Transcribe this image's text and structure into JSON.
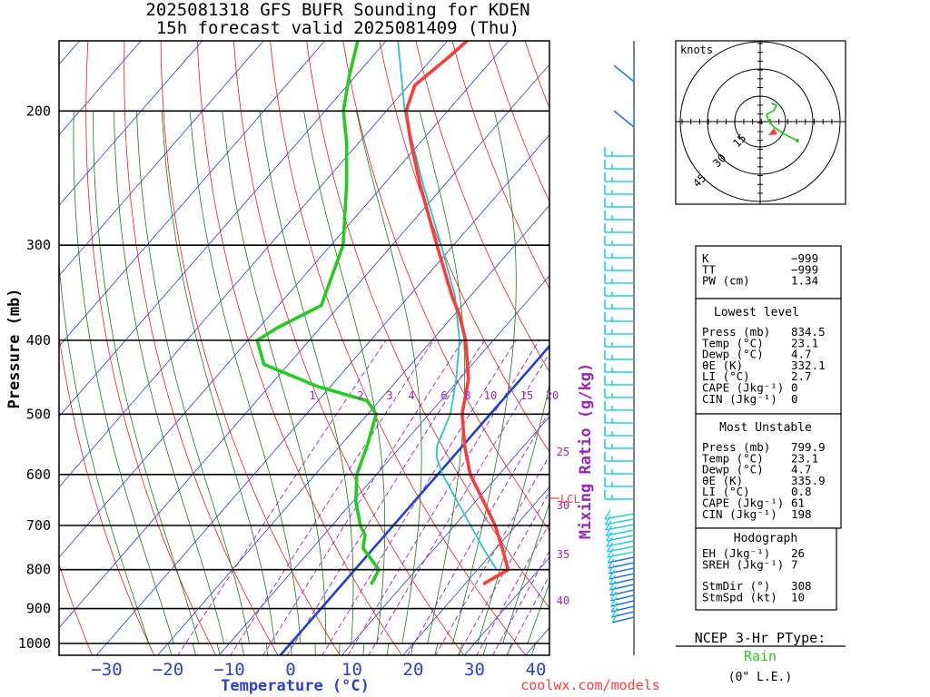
{
  "header": {
    "title_line1": "2025081318 GFS BUFR Sounding for KDEN",
    "title_line2": "15h forecast valid 2025081409 (Thu)"
  },
  "footer": {
    "credit": "coolwx.com/models"
  },
  "colors": {
    "temperature": "#ff3a3a",
    "dewpoint": "#22cc22",
    "parcel": "#22c8c8",
    "isotherm": "#2a3fd6",
    "dry_adiabat": "#e02020",
    "moist_adiabat": "#1a7a1a",
    "mixing_ratio": "#a020c0",
    "wind_barb": "#20d0e0",
    "wind_barb_low": "#1e78e6",
    "zero_isotherm": "#2040d0"
  },
  "chart_data": {
    "type": "line",
    "subtype": "skew-T log-P sounding",
    "xlabel": "Temperature (°C)",
    "ylabel": "Pressure (mb)",
    "x_ticks": [
      -30,
      -20,
      -10,
      0,
      10,
      20,
      30,
      40
    ],
    "x_tick_labels": [
      "−30",
      "−20",
      "−10",
      "0",
      "10",
      "20",
      "30",
      "40"
    ],
    "y_ticks": [
      1000,
      900,
      800,
      700,
      600,
      500,
      400,
      300,
      200
    ],
    "y_tick_labels": [
      "1000",
      "900",
      "800",
      "700",
      "600",
      "500",
      "400",
      "300",
      "200"
    ],
    "ylim": [
      1050,
      100
    ],
    "xlim_at_bottom": [
      -38,
      42
    ],
    "mixing_ratio_label": "Mixing Ratio (g/kg)",
    "mixing_ratio_values": [
      1,
      2,
      3,
      4,
      6,
      8,
      10,
      15,
      20,
      25,
      30,
      35,
      40
    ],
    "lcl_label": "LCL",
    "lcl_pressure": 570,
    "series": [
      {
        "name": "temperature",
        "points": [
          {
            "p": 834,
            "t": 23.1
          },
          {
            "p": 800,
            "t": 25.0
          },
          {
            "p": 750,
            "t": 21.0
          },
          {
            "p": 700,
            "t": 16.6
          },
          {
            "p": 650,
            "t": 11.2
          },
          {
            "p": 600,
            "t": 5.3
          },
          {
            "p": 550,
            "t": 0.3
          },
          {
            "p": 500,
            "t": -4.6
          },
          {
            "p": 450,
            "t": -8.5
          },
          {
            "p": 400,
            "t": -14.5
          },
          {
            "p": 370,
            "t": -19.2
          },
          {
            "p": 350,
            "t": -23.0
          },
          {
            "p": 300,
            "t": -32.7
          },
          {
            "p": 250,
            "t": -44.0
          },
          {
            "p": 220,
            "t": -51.5
          },
          {
            "p": 200,
            "t": -56.8
          },
          {
            "p": 185,
            "t": -59.0
          },
          {
            "p": 170,
            "t": -57.5
          },
          {
            "p": 155,
            "t": -56.2
          },
          {
            "p": 145,
            "t": -54.0
          },
          {
            "p": 130,
            "t": -53.8
          },
          {
            "p": 115,
            "t": -53.0
          },
          {
            "p": 105,
            "t": -51.5
          }
        ]
      },
      {
        "name": "dewpoint",
        "points": [
          {
            "p": 834,
            "t": 4.7
          },
          {
            "p": 800,
            "t": 3.9
          },
          {
            "p": 750,
            "t": -1.7
          },
          {
            "p": 720,
            "t": -3.3
          },
          {
            "p": 700,
            "t": -5.4
          },
          {
            "p": 650,
            "t": -9.6
          },
          {
            "p": 600,
            "t": -13.2
          },
          {
            "p": 550,
            "t": -15.6
          },
          {
            "p": 500,
            "t": -18.6
          },
          {
            "p": 480,
            "t": -22.0
          },
          {
            "p": 460,
            "t": -32.0
          },
          {
            "p": 430,
            "t": -44.0
          },
          {
            "p": 400,
            "t": -48.5
          },
          {
            "p": 385,
            "t": -47.0
          },
          {
            "p": 360,
            "t": -43.0
          },
          {
            "p": 300,
            "t": -48.0
          },
          {
            "p": 250,
            "t": -56.0
          },
          {
            "p": 220,
            "t": -62.0
          },
          {
            "p": 200,
            "t": -67.0
          },
          {
            "p": 180,
            "t": -71.0
          },
          {
            "p": 160,
            "t": -75.0
          }
        ]
      },
      {
        "name": "parcel",
        "points": [
          {
            "p": 799.9,
            "t": 23.1
          },
          {
            "p": 750,
            "t": 17.9
          },
          {
            "p": 700,
            "t": 12.6
          },
          {
            "p": 650,
            "t": 6.9
          },
          {
            "p": 600,
            "t": 0.8
          },
          {
            "p": 570,
            "t": -2.6
          },
          {
            "p": 550,
            "t": -4.2
          },
          {
            "p": 500,
            "t": -6.5
          },
          {
            "p": 450,
            "t": -10.5
          },
          {
            "p": 400,
            "t": -15.5
          },
          {
            "p": 350,
            "t": -22.5
          },
          {
            "p": 300,
            "t": -32.0
          },
          {
            "p": 250,
            "t": -43.5
          },
          {
            "p": 200,
            "t": -57.0
          },
          {
            "p": 150,
            "t": -72.0
          },
          {
            "p": 120,
            "t": -83.0
          },
          {
            "p": 100,
            "t": -91.0
          }
        ]
      }
    ],
    "hodograph": {
      "units_label": "knots",
      "ring_labels": [
        "15",
        "30",
        "45"
      ]
    }
  },
  "indices_panel": {
    "general": [
      {
        "label": "K",
        "value": "−999"
      },
      {
        "label": "TT",
        "value": "−999"
      },
      {
        "label": "PW (cm)",
        "value": "1.34"
      }
    ],
    "lowest_level_title": "Lowest level",
    "lowest_level": [
      {
        "label": "Press (mb)",
        "value": "834.5"
      },
      {
        "label": "Temp (°C)",
        "value": "23.1"
      },
      {
        "label": "Dewp (°C)",
        "value": "4.7"
      },
      {
        "label": "θE (K)",
        "value": "332.1"
      },
      {
        "label": "LI (°C)",
        "value": "2.7"
      },
      {
        "label": "CAPE (Jkg⁻¹)",
        "value": "0"
      },
      {
        "label": "CIN (Jkg⁻¹)",
        "value": "0"
      }
    ],
    "most_unstable_title": "Most Unstable",
    "most_unstable": [
      {
        "label": "Press (mb)",
        "value": "799.9"
      },
      {
        "label": "Temp (°C)",
        "value": "23.1"
      },
      {
        "label": "Dewp (°C)",
        "value": "4.7"
      },
      {
        "label": "θE (K)",
        "value": "335.9"
      },
      {
        "label": "LI (°C)",
        "value": "0.8"
      },
      {
        "label": "CAPE (Jkg⁻¹)",
        "value": "61"
      },
      {
        "label": "CIN (Jkg⁻¹)",
        "value": "198"
      }
    ],
    "hodograph_title": "Hodograph",
    "hodograph_rows": [
      {
        "label": "EH (Jkg⁻¹)",
        "value": "26"
      },
      {
        "label": "SREH (Jkg⁻¹)",
        "value": "7"
      },
      {
        "label": "StmDir (°)",
        "value": "308"
      },
      {
        "label": "StmSpd (kt)",
        "value": "10"
      }
    ]
  },
  "ptype": {
    "title": "NCEP 3-Hr PType:",
    "value": "Rain",
    "value_color": "#22cc22",
    "note": "(0\" L.E.)"
  }
}
